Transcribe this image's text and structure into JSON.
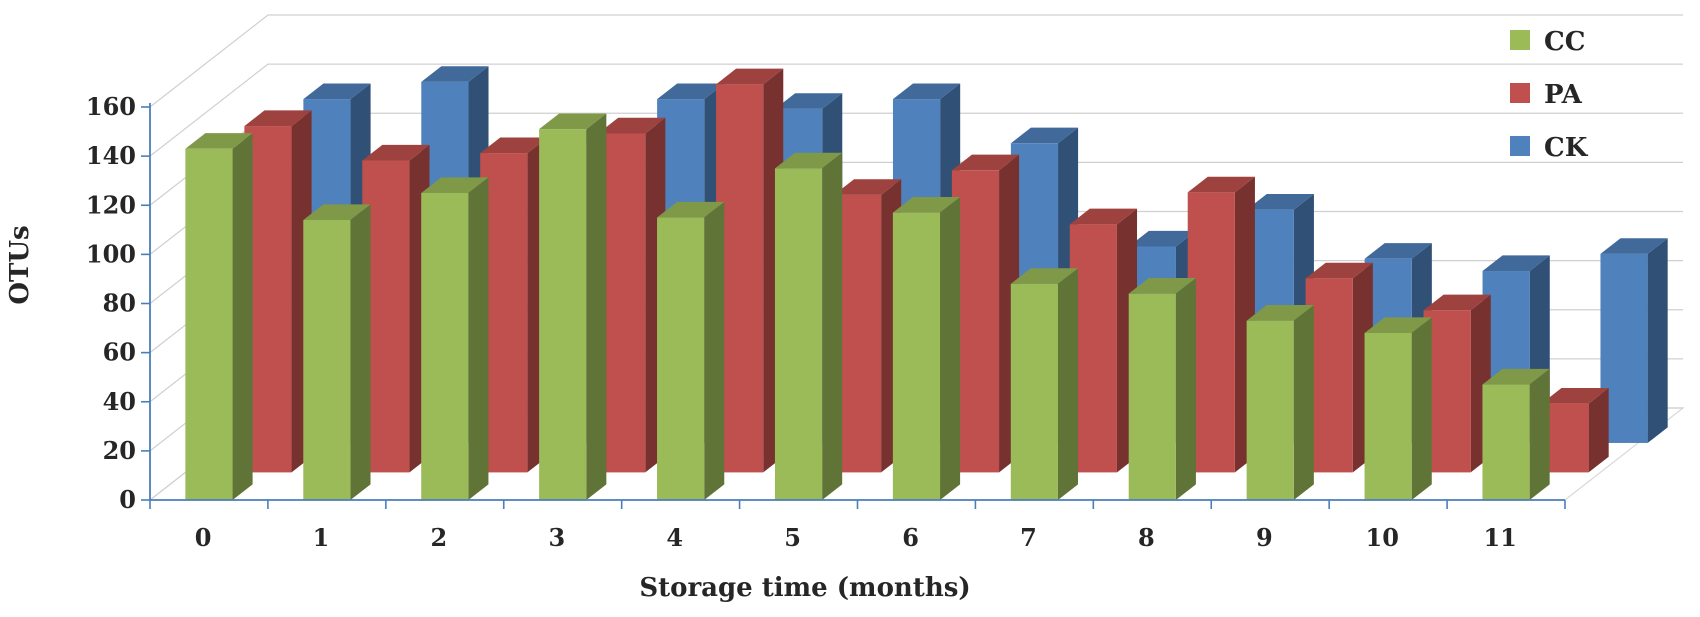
{
  "chart_data": {
    "type": "bar",
    "style": "3d-clustered-column",
    "categories": [
      "0",
      "1",
      "2",
      "3",
      "4",
      "5",
      "6",
      "7",
      "8",
      "9",
      "10",
      "11"
    ],
    "series": [
      {
        "name": "CC",
        "color": "#9BBB59",
        "values": [
          143,
          114,
          125,
          151,
          115,
          135,
          117,
          88,
          84,
          73,
          68,
          47
        ]
      },
      {
        "name": "PA",
        "color": "#C0504D",
        "values": [
          141,
          127,
          130,
          138,
          158,
          113,
          123,
          101,
          114,
          79,
          66,
          28
        ]
      },
      {
        "name": "CK",
        "color": "#4F81BD",
        "values": [
          140,
          147,
          121,
          140,
          136,
          140,
          122,
          80,
          95,
          75,
          70,
          77
        ]
      }
    ],
    "xlabel": "Storage time (months)",
    "ylabel": "OTUs",
    "ylim": [
      0,
      160
    ],
    "yticks": [
      0,
      20,
      40,
      60,
      80,
      100,
      120,
      140,
      160
    ],
    "grid": true,
    "legend": "top-right"
  }
}
